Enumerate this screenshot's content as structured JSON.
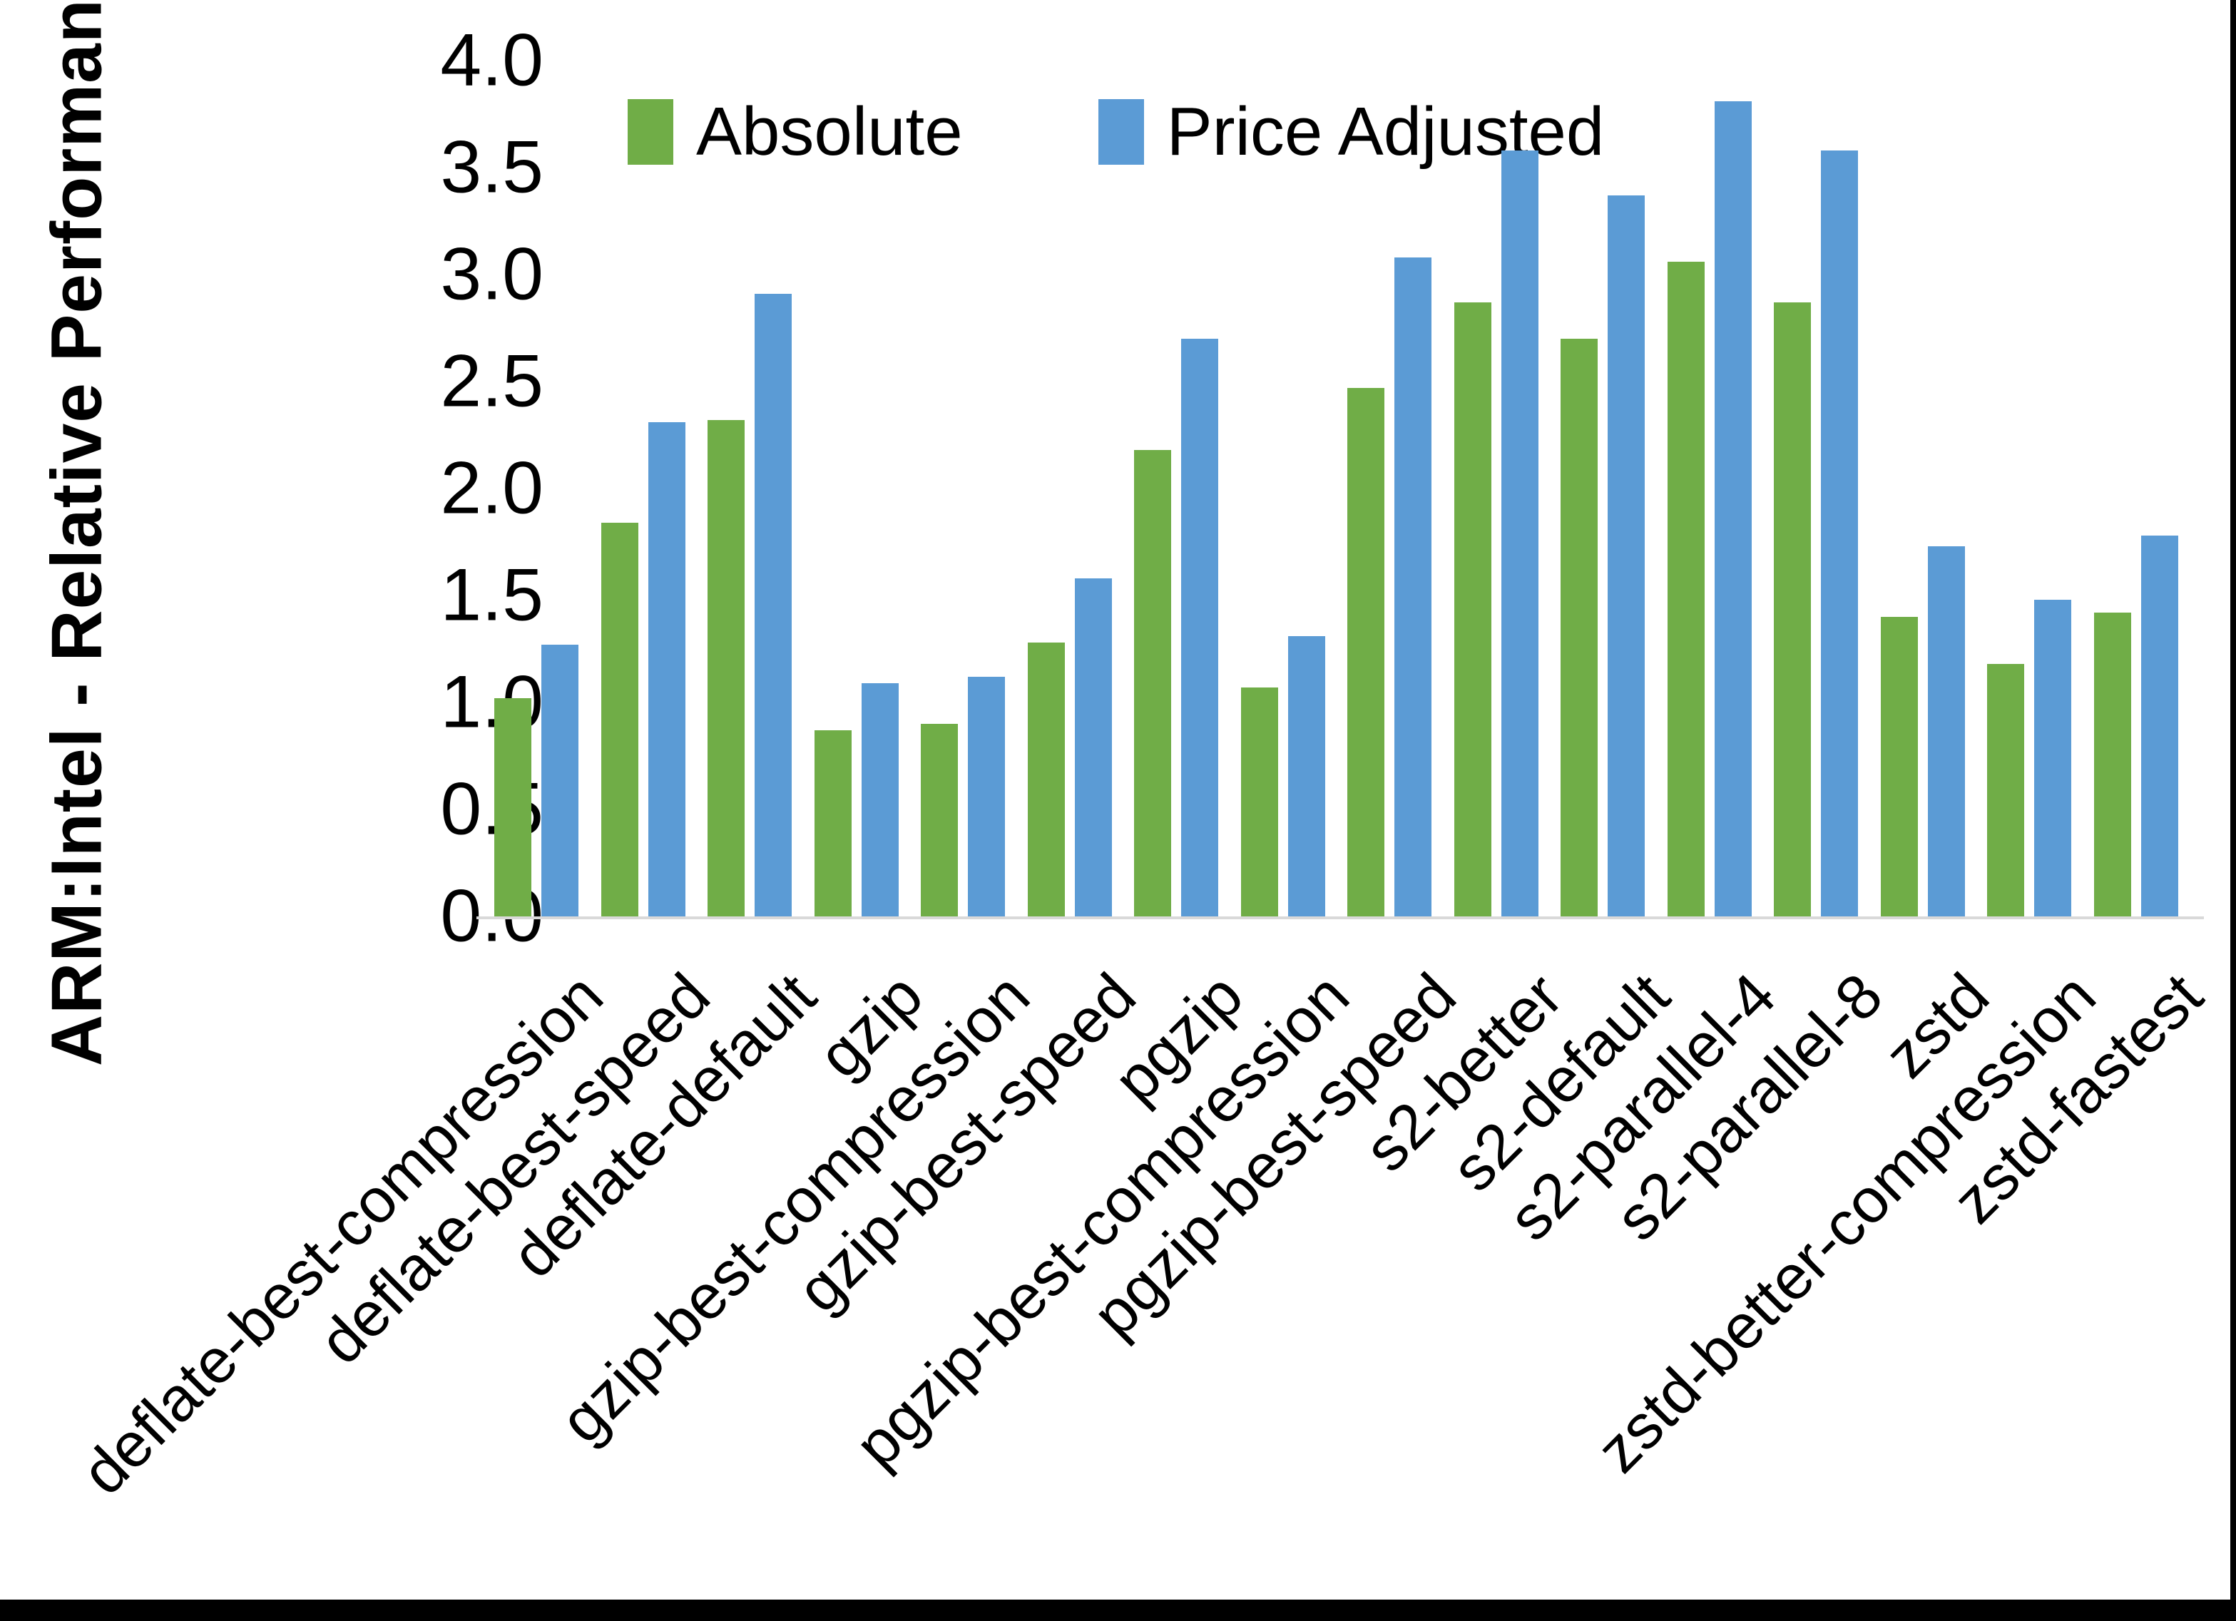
{
  "figure": {
    "background": "#ffffff",
    "frame_color": "#000000",
    "axis_line_color": "#d9d9d9"
  },
  "chart_data": {
    "type": "bar",
    "title": "",
    "xlabel": "",
    "ylabel": "ARM:Intel - Relative Performance",
    "ylim": [
      0.0,
      4.0
    ],
    "ytick_step": 0.5,
    "ytick_labels": [
      "4.0",
      "3.5",
      "3.0",
      "2.5",
      "2.0",
      "1.5",
      "1.0",
      "0.5",
      "0.0"
    ],
    "grid": false,
    "legend_position": "top-center",
    "categories": [
      "deflate-best-compression",
      "deflate-best-speed",
      "deflate-default",
      "gzip",
      "gzip-best-compression",
      "gzip-best-speed",
      "pgzip",
      "pgzip-best-compression",
      "pgzip-best-speed",
      "s2-better",
      "s2-default",
      "s2-parallel-4",
      "s2-parallel-8",
      "zstd",
      "zstd-better-compression",
      "zstd-fastest"
    ],
    "series": [
      {
        "name": "Absolute",
        "color": "#70AD47",
        "values": [
          1.02,
          1.84,
          2.32,
          0.87,
          0.9,
          1.28,
          2.18,
          1.07,
          2.47,
          2.87,
          2.7,
          3.06,
          2.87,
          1.4,
          1.18,
          1.42
        ]
      },
      {
        "name": "Price Adjusted",
        "color": "#5B9BD5",
        "values": [
          1.27,
          2.31,
          2.91,
          1.09,
          1.12,
          1.58,
          2.7,
          1.31,
          3.08,
          3.58,
          3.37,
          3.81,
          3.58,
          1.73,
          1.48,
          1.78
        ]
      }
    ]
  }
}
